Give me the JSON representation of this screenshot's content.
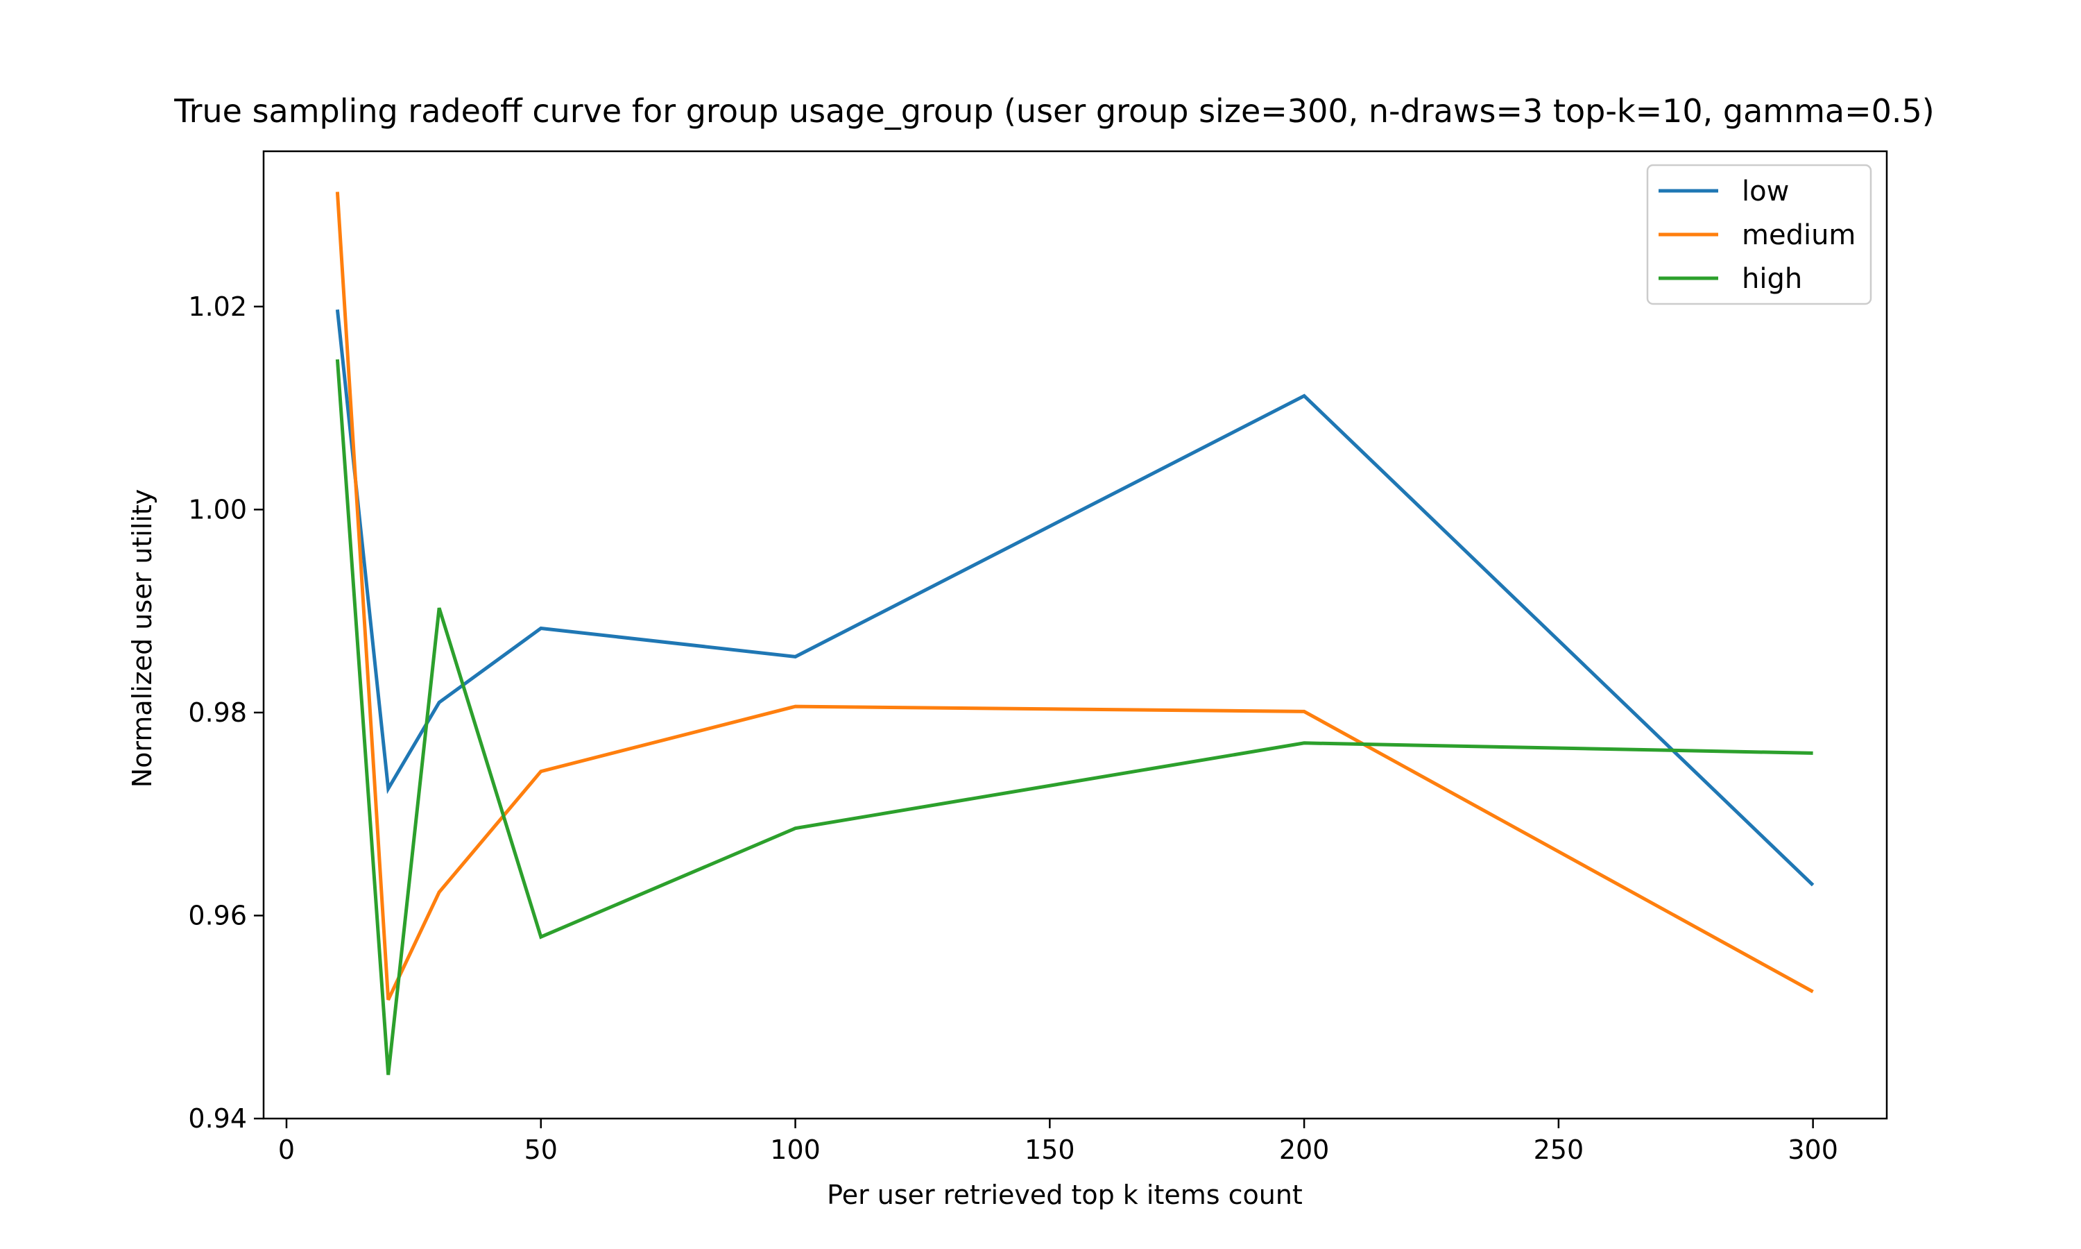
{
  "chart_data": {
    "type": "line",
    "title": "True sampling radeoff curve for group usage_group (user group size=300, n-draws=3 top-k=10, gamma=0.5)",
    "xlabel": "Per user retrieved top k items count",
    "ylabel": "Normalized user utility",
    "x": [
      10,
      20,
      30,
      50,
      100,
      200,
      300
    ],
    "series": [
      {
        "name": "low",
        "color": "#1f77b4",
        "values": [
          1.0197,
          0.9725,
          0.981,
          0.9883,
          0.9855,
          1.0112,
          0.963
        ]
      },
      {
        "name": "medium",
        "color": "#ff7f0e",
        "values": [
          1.0313,
          0.9517,
          0.9623,
          0.9742,
          0.9806,
          0.9801,
          0.9525
        ]
      },
      {
        "name": "high",
        "color": "#2ca02c",
        "values": [
          1.0148,
          0.9443,
          0.9903,
          0.9579,
          0.9686,
          0.977,
          0.976
        ]
      }
    ],
    "xticks": [
      0,
      50,
      100,
      150,
      200,
      250,
      300
    ],
    "xtick_labels": [
      "0",
      "50",
      "100",
      "150",
      "200",
      "250",
      "300"
    ],
    "yticks": [
      0.94,
      0.96,
      0.98,
      1.0,
      1.02
    ],
    "ytick_labels": [
      "0.94",
      "0.96",
      "0.98",
      "1.00",
      "1.02"
    ],
    "xlim": [
      -4.5,
      314.5
    ],
    "ylim": [
      0.94,
      1.0353
    ],
    "grid": false,
    "legend_position": "top-right"
  }
}
